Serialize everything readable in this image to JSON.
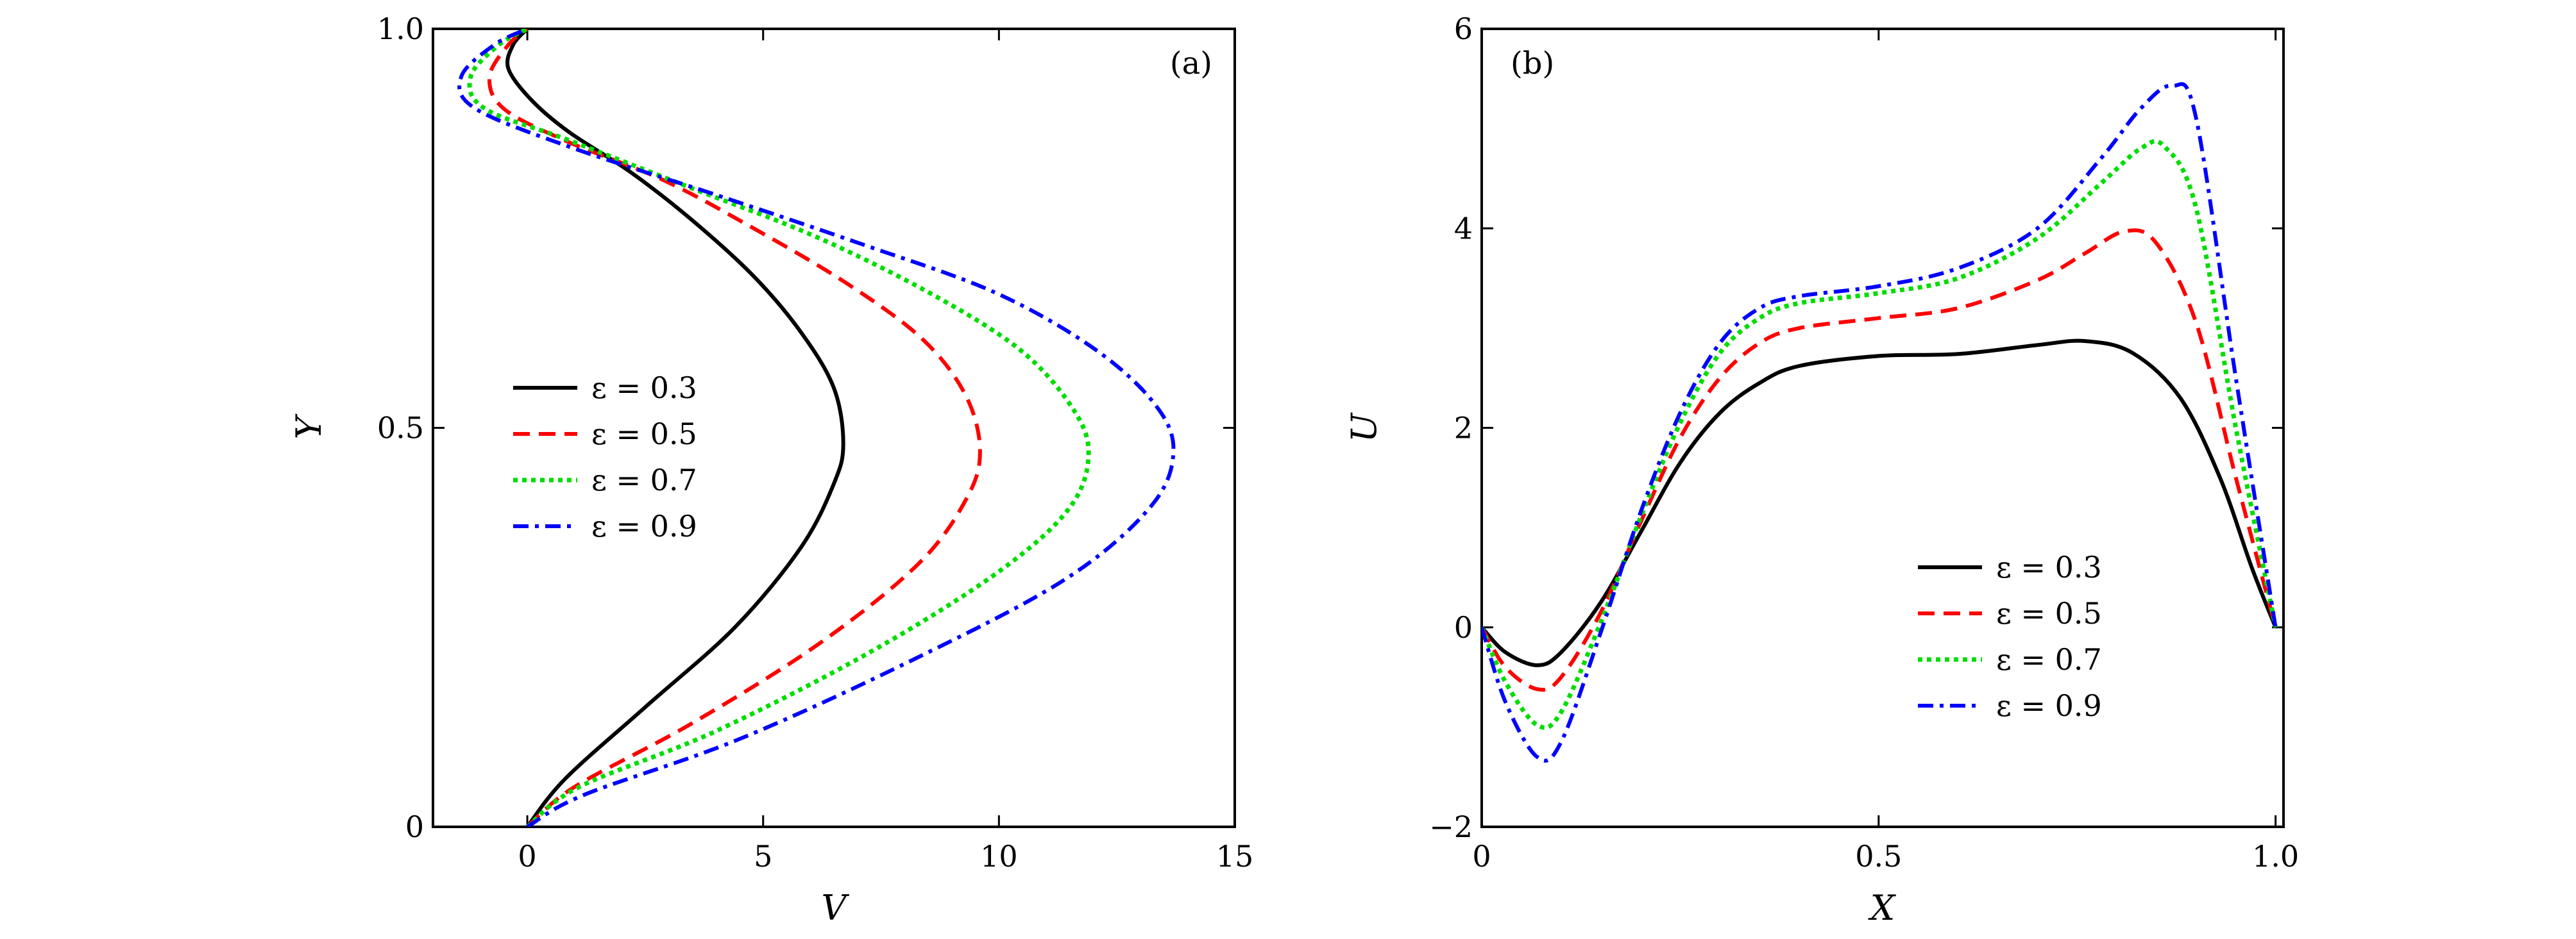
{
  "chart_data": [
    {
      "type": "line",
      "panel_label": "(a)",
      "xlabel": "V",
      "ylabel": "Y",
      "xlim": [
        -2,
        15
      ],
      "ylim": [
        0,
        1
      ],
      "x_ticks": [
        0,
        5,
        10,
        15
      ],
      "x_tick_labels": [
        "0",
        "5",
        "10",
        "15"
      ],
      "y_ticks": [
        0,
        0.5,
        1
      ],
      "y_tick_labels": [
        "0",
        "0.5",
        "1.0"
      ],
      "grid": false,
      "legend_position": "center-left",
      "series": [
        {
          "name": "ε = 0.3",
          "color": "#000000",
          "dash": "solid",
          "x": [
            0,
            0.8,
            2.5,
            4.4,
            5.8,
            6.5,
            6.7,
            6.5,
            5.8,
            4.8,
            3.5,
            2.2,
            0.9,
            0.1,
            -0.4,
            -0.3,
            0
          ],
          "y": [
            0,
            0.06,
            0.15,
            0.25,
            0.35,
            0.43,
            0.48,
            0.55,
            0.62,
            0.69,
            0.76,
            0.82,
            0.87,
            0.91,
            0.95,
            0.98,
            1.0
          ]
        },
        {
          "name": "ε = 0.5",
          "color": "#ff0000",
          "dash": "dashed",
          "x": [
            0,
            1.0,
            3.5,
            6.2,
            8.3,
            9.3,
            9.6,
            9.3,
            8.4,
            6.8,
            4.8,
            2.9,
            0.8,
            -0.5,
            -0.8,
            -0.4,
            0
          ],
          "y": [
            0,
            0.05,
            0.13,
            0.23,
            0.33,
            0.41,
            0.47,
            0.54,
            0.61,
            0.68,
            0.75,
            0.81,
            0.86,
            0.9,
            0.94,
            0.98,
            1.0
          ]
        },
        {
          "name": "ε = 0.7",
          "color": "#00dd00",
          "dash": "dotted",
          "x": [
            0,
            1.1,
            4.0,
            7.3,
            10.0,
            11.5,
            11.9,
            11.5,
            10.4,
            8.5,
            6.1,
            3.5,
            0.9,
            -0.9,
            -1.2,
            -0.6,
            0
          ],
          "y": [
            0,
            0.05,
            0.12,
            0.22,
            0.32,
            0.4,
            0.47,
            0.53,
            0.6,
            0.67,
            0.74,
            0.8,
            0.86,
            0.9,
            0.94,
            0.98,
            1.0
          ]
        },
        {
          "name": "ε = 0.9",
          "color": "#0000ff",
          "dash": "dashdot",
          "x": [
            0,
            1.2,
            4.5,
            8.2,
            11.4,
            13.2,
            13.7,
            13.3,
            12.0,
            9.9,
            7.1,
            4.1,
            1.0,
            -1.1,
            -1.4,
            -0.7,
            0
          ],
          "y": [
            0,
            0.04,
            0.11,
            0.21,
            0.31,
            0.4,
            0.47,
            0.53,
            0.6,
            0.67,
            0.73,
            0.79,
            0.85,
            0.9,
            0.94,
            0.98,
            1.0
          ]
        }
      ]
    },
    {
      "type": "line",
      "panel_label": "(b)",
      "xlabel": "X",
      "ylabel": "U",
      "xlim": [
        0,
        1.01
      ],
      "ylim": [
        -2,
        6
      ],
      "x_ticks": [
        0,
        0.5,
        1
      ],
      "x_tick_labels": [
        "0",
        "0.5",
        "1.0"
      ],
      "y_ticks": [
        -2,
        0,
        2,
        4,
        6
      ],
      "y_tick_labels": [
        "−2",
        "0",
        "2",
        "4",
        "6"
      ],
      "grid": false,
      "legend_position": "lower-right",
      "series": [
        {
          "name": "ε = 0.3",
          "color": "#000000",
          "dash": "solid",
          "x": [
            0,
            0.03,
            0.07,
            0.1,
            0.15,
            0.2,
            0.25,
            0.3,
            0.35,
            0.4,
            0.5,
            0.6,
            0.7,
            0.76,
            0.82,
            0.88,
            0.93,
            0.97,
            1.0
          ],
          "y": [
            0,
            -0.25,
            -0.38,
            -0.25,
            0.25,
            0.95,
            1.65,
            2.15,
            2.45,
            2.62,
            2.72,
            2.74,
            2.83,
            2.87,
            2.75,
            2.3,
            1.5,
            0.6,
            0
          ]
        },
        {
          "name": "ε = 0.5",
          "color": "#ff0000",
          "dash": "dashed",
          "x": [
            0,
            0.03,
            0.07,
            0.1,
            0.15,
            0.2,
            0.25,
            0.3,
            0.35,
            0.4,
            0.5,
            0.6,
            0.7,
            0.76,
            0.81,
            0.85,
            0.9,
            0.95,
            1.0
          ],
          "y": [
            0,
            -0.4,
            -0.62,
            -0.5,
            0.15,
            1.05,
            1.9,
            2.5,
            2.85,
            3.0,
            3.1,
            3.2,
            3.48,
            3.75,
            3.97,
            3.85,
            3.05,
            1.5,
            0
          ]
        },
        {
          "name": "ε = 0.7",
          "color": "#00dd00",
          "dash": "dotted",
          "x": [
            0,
            0.03,
            0.07,
            0.1,
            0.15,
            0.2,
            0.25,
            0.3,
            0.35,
            0.4,
            0.5,
            0.6,
            0.7,
            0.78,
            0.83,
            0.86,
            0.9,
            0.95,
            1.0
          ],
          "y": [
            0,
            -0.55,
            -0.98,
            -0.85,
            0.05,
            1.1,
            2.05,
            2.75,
            3.1,
            3.25,
            3.35,
            3.5,
            3.9,
            4.45,
            4.8,
            4.82,
            4.2,
            2.0,
            0
          ]
        },
        {
          "name": "ε = 0.9",
          "color": "#0000ff",
          "dash": "dashdot",
          "x": [
            0,
            0.03,
            0.07,
            0.1,
            0.15,
            0.2,
            0.25,
            0.3,
            0.35,
            0.4,
            0.5,
            0.6,
            0.7,
            0.78,
            0.83,
            0.87,
            0.9,
            0.95,
            1.0
          ],
          "y": [
            0,
            -0.75,
            -1.3,
            -1.15,
            -0.05,
            1.15,
            2.15,
            2.85,
            3.2,
            3.32,
            3.42,
            3.6,
            4.0,
            4.7,
            5.2,
            5.43,
            5.1,
            2.5,
            0
          ]
        }
      ]
    }
  ]
}
